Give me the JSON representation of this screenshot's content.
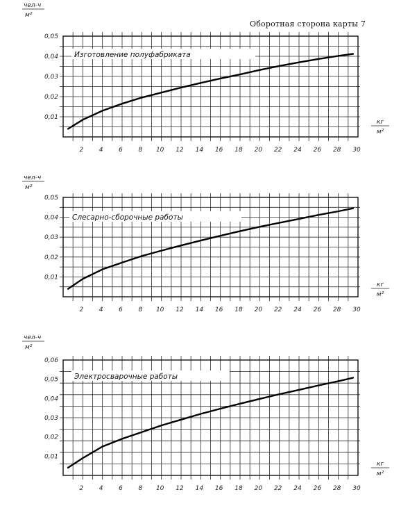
{
  "header": {
    "text": "Оборотная сторона карты 7"
  },
  "chart_data": [
    {
      "type": "line",
      "title": "",
      "annotation": "Изготовление полуфабриката",
      "ylabel_top": "чел-ч",
      "ylabel_bottom": "м²",
      "xlabel_top": "кг",
      "xlabel_bottom": "м²",
      "xlim": [
        0,
        30
      ],
      "ylim": [
        0,
        0.05
      ],
      "x_ticks": [
        2,
        4,
        6,
        8,
        10,
        12,
        14,
        16,
        18,
        20,
        22,
        24,
        26,
        28,
        30
      ],
      "y_ticks": [
        "0,01",
        "0,02",
        "0,03",
        "0,04",
        "0,05"
      ],
      "y_tick_values": [
        0.01,
        0.02,
        0.03,
        0.04,
        0.05
      ],
      "grid": true,
      "series": [
        {
          "x": [
            0.5,
            2,
            4,
            6,
            8,
            10,
            12,
            14,
            16,
            18,
            20,
            22,
            24,
            26,
            28,
            29.5
          ],
          "y": [
            0.004,
            0.0085,
            0.013,
            0.0165,
            0.0195,
            0.022,
            0.0245,
            0.0268,
            0.029,
            0.031,
            0.0332,
            0.0352,
            0.037,
            0.0387,
            0.0402,
            0.0412
          ]
        }
      ]
    },
    {
      "type": "line",
      "title": "",
      "annotation": "Слесарно-сборочные работы",
      "ylabel_top": "чел-ч",
      "ylabel_bottom": "м²",
      "xlabel_top": "кг",
      "xlabel_bottom": "м²",
      "xlim": [
        0,
        30
      ],
      "ylim": [
        0,
        0.05
      ],
      "x_ticks": [
        2,
        4,
        6,
        8,
        10,
        12,
        14,
        16,
        18,
        20,
        22,
        24,
        26,
        28,
        30
      ],
      "y_ticks": [
        "0,01",
        "0,02",
        "0,03",
        "0,04",
        "0,05"
      ],
      "y_tick_values": [
        0.01,
        0.02,
        0.03,
        0.04,
        0.05
      ],
      "grid": true,
      "series": [
        {
          "x": [
            0.5,
            2,
            4,
            6,
            8,
            10,
            12,
            14,
            16,
            18,
            20,
            22,
            24,
            26,
            28,
            29.5
          ],
          "y": [
            0.004,
            0.009,
            0.0138,
            0.0172,
            0.0205,
            0.0232,
            0.0258,
            0.0283,
            0.0307,
            0.033,
            0.0352,
            0.0372,
            0.0392,
            0.0412,
            0.043,
            0.0445
          ]
        }
      ]
    },
    {
      "type": "line",
      "title": "",
      "annotation": "Электросварочные работы",
      "ylabel_top": "чел-ч",
      "ylabel_bottom": "м²",
      "xlabel_top": "кг",
      "xlabel_bottom": "м²",
      "xlim": [
        0,
        30
      ],
      "ylim": [
        0,
        0.06
      ],
      "x_ticks": [
        2,
        4,
        6,
        8,
        10,
        12,
        14,
        16,
        18,
        20,
        22,
        24,
        26,
        28,
        30
      ],
      "y_ticks": [
        "0,01",
        "0,02",
        "0,03",
        "0,04",
        "0,05",
        "0,06"
      ],
      "y_tick_values": [
        0.01,
        0.02,
        0.03,
        0.04,
        0.05,
        0.06
      ],
      "grid": true,
      "series": [
        {
          "x": [
            0.5,
            2,
            4,
            6,
            8,
            10,
            12,
            14,
            16,
            18,
            20,
            22,
            24,
            26,
            28,
            29.5
          ],
          "y": [
            0.004,
            0.009,
            0.015,
            0.019,
            0.0225,
            0.026,
            0.029,
            0.032,
            0.0347,
            0.0373,
            0.0398,
            0.0422,
            0.0445,
            0.0468,
            0.049,
            0.0508
          ]
        }
      ]
    }
  ]
}
